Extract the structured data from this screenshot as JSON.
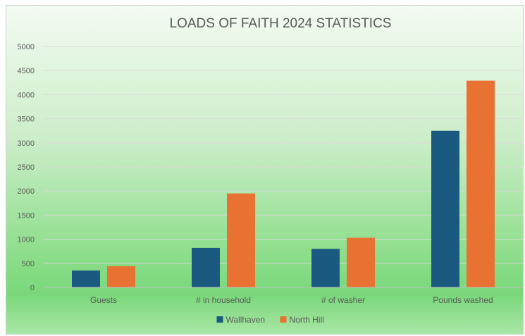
{
  "chart_data": {
    "type": "bar",
    "title": "LOADS OF FAITH 2024 STATISTICS",
    "categories": [
      "Guests",
      "# in household",
      "# of washer",
      "Pounds washed"
    ],
    "series": [
      {
        "name": "Wallhaven",
        "values": [
          350,
          820,
          800,
          3250
        ]
      },
      {
        "name": "North Hill",
        "values": [
          440,
          1950,
          1030,
          4290
        ]
      }
    ],
    "y_ticks": [
      0,
      500,
      1000,
      1500,
      2000,
      2500,
      3000,
      3500,
      4000,
      4500,
      5000
    ],
    "ylim": [
      0,
      5000
    ],
    "grid": true,
    "legend_position": "bottom",
    "colors": {
      "Wallhaven": "#1b5a80",
      "North Hill": "#e97132"
    }
  }
}
